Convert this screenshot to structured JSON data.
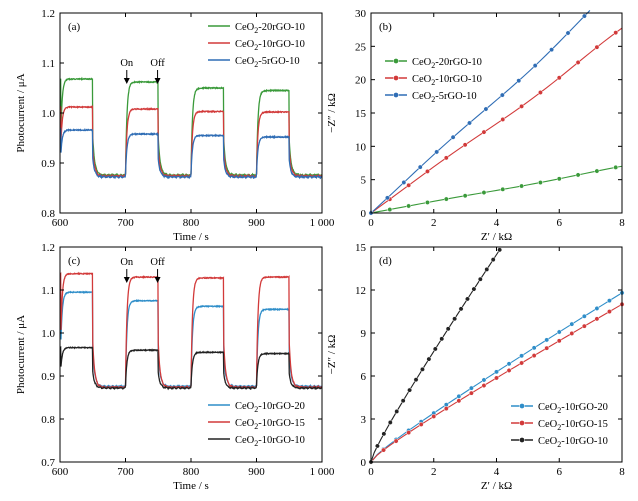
{
  "chart_data": [
    {
      "panel": "(a)",
      "type": "line",
      "xlabel": "Time / s",
      "ylabel": "Photocurrent / μA",
      "xlim": [
        600,
        1000
      ],
      "ylim": [
        0.8,
        1.2
      ],
      "xticks": [
        "600",
        "700",
        "800",
        "900",
        "1 000"
      ],
      "xtick_values": [
        600,
        700,
        800,
        900,
        1000
      ],
      "yticks": [
        "0.8",
        "0.9",
        "1.0",
        "1.1",
        "1.2"
      ],
      "ytick_values": [
        0.8,
        0.9,
        1.0,
        1.1,
        1.2
      ],
      "legend_position": "top-right",
      "annotations": [
        {
          "text": "On",
          "x": 705
        },
        {
          "text": "Off",
          "x": 752
        }
      ],
      "series": [
        {
          "name": "CeO2-20rGO-10",
          "label_main": "CeO",
          "label_sub": "2",
          "label_rest": "-20rGO-10",
          "color": "#3a9a3a",
          "on_levels": [
            1.068,
            1.062,
            1.05,
            1.045
          ],
          "dark_level": 0.878
        },
        {
          "name": "CeO2-10rGO-10",
          "label_main": "CeO",
          "label_sub": "2",
          "label_rest": "-10rGO-10",
          "color": "#d23a3a",
          "on_levels": [
            1.012,
            1.008,
            1.003,
            1.002
          ],
          "dark_level": 0.878
        },
        {
          "name": "CeO2-5rGO-10",
          "label_main": "CeO",
          "label_sub": "2",
          "label_rest": "-5rGO-10",
          "color": "#2f6db5",
          "on_levels": [
            0.966,
            0.958,
            0.955,
            0.952
          ],
          "dark_level": 0.878
        }
      ]
    },
    {
      "panel": "(b)",
      "type": "scatter",
      "xlabel": "Z′ / kΩ",
      "ylabel": "−Z″ / kΩ",
      "xlim": [
        0,
        8
      ],
      "ylim": [
        0,
        30
      ],
      "xticks": [
        "0",
        "2",
        "4",
        "6",
        "8"
      ],
      "xtick_values": [
        0,
        2,
        4,
        6,
        8
      ],
      "yticks": [
        "0",
        "5",
        "10",
        "15",
        "20",
        "25",
        "30"
      ],
      "ytick_values": [
        0,
        5,
        10,
        15,
        20,
        25,
        30
      ],
      "legend_position": "top-left",
      "series": [
        {
          "name": "CeO2-20rGO-10",
          "label_main": "CeO",
          "label_sub": "2",
          "label_rest": "-20rGO-10",
          "color": "#3a9a3a",
          "slope": 0.86
        },
        {
          "name": "CeO2-10rGO-10",
          "label_main": "CeO",
          "label_sub": "2",
          "label_rest": "-10rGO-10",
          "color": "#d23a3a",
          "slope": 3.4
        },
        {
          "name": "CeO2-5rGO-10",
          "label_main": "CeO",
          "label_sub": "2",
          "label_rest": "-5rGO-10",
          "color": "#2f6db5",
          "slope": 4.3
        }
      ]
    },
    {
      "panel": "(c)",
      "type": "line",
      "xlabel": "Time / s",
      "ylabel": "Photocurrent / μA",
      "xlim": [
        600,
        1000
      ],
      "ylim": [
        0.7,
        1.2
      ],
      "xticks": [
        "600",
        "700",
        "800",
        "900",
        "1 000"
      ],
      "xtick_values": [
        600,
        700,
        800,
        900,
        1000
      ],
      "yticks": [
        "0.7",
        "0.8",
        "0.9",
        "1.0",
        "1.1",
        "1.2"
      ],
      "ytick_values": [
        0.7,
        0.8,
        0.9,
        1.0,
        1.1,
        1.2
      ],
      "legend_position": "bottom-right",
      "annotations": [
        {
          "text": "On",
          "x": 705
        },
        {
          "text": "Off",
          "x": 752
        }
      ],
      "series": [
        {
          "name": "CeO2-10rGO-20",
          "label_main": "CeO",
          "label_sub": "2",
          "label_rest": "-10rGO-20",
          "color": "#2f8ec9",
          "on_levels": [
            1.095,
            1.075,
            1.062,
            1.055
          ],
          "dark_level": 0.878
        },
        {
          "name": "CeO2-10rGO-15",
          "label_main": "CeO",
          "label_sub": "2",
          "label_rest": "-10rGO-15",
          "color": "#d23a3a",
          "on_levels": [
            1.138,
            1.13,
            1.128,
            1.13
          ],
          "dark_level": 0.878
        },
        {
          "name": "CeO2-10rGO-10",
          "label_main": "CeO",
          "label_sub": "2",
          "label_rest": "-10rGO-10",
          "color": "#222222",
          "on_levels": [
            0.966,
            0.96,
            0.955,
            0.952
          ],
          "dark_level": 0.878
        }
      ]
    },
    {
      "panel": "(d)",
      "type": "scatter",
      "xlabel": "Z′ / kΩ",
      "ylabel": "−Z″ / kΩ",
      "xlim": [
        0,
        8
      ],
      "ylim": [
        0,
        15
      ],
      "xticks": [
        "0",
        "2",
        "4",
        "6",
        "8"
      ],
      "xtick_values": [
        0,
        2,
        4,
        6,
        8
      ],
      "yticks": [
        "0",
        "3",
        "6",
        "9",
        "12",
        "15"
      ],
      "ytick_values": [
        0,
        3,
        6,
        9,
        12,
        15
      ],
      "legend_position": "bottom-right",
      "series": [
        {
          "name": "CeO2-10rGO-20",
          "label_main": "CeO",
          "label_sub": "2",
          "label_rest": "-10rGO-20",
          "color": "#2f8ec9",
          "endpoint": [
            8,
            11.8
          ]
        },
        {
          "name": "CeO2-10rGO-15",
          "label_main": "CeO",
          "label_sub": "2",
          "label_rest": "-10rGO-15",
          "color": "#d23a3a",
          "endpoint": [
            8,
            11.0
          ]
        },
        {
          "name": "CeO2-10rGO-10",
          "label_main": "CeO",
          "label_sub": "2",
          "label_rest": "-10rGO-10",
          "color": "#222222",
          "endpoint": [
            4.1,
            14.8
          ]
        }
      ]
    }
  ]
}
